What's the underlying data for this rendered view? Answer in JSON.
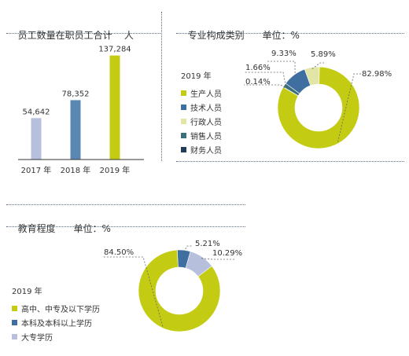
{
  "colors": {
    "lime": "#c3cc12",
    "blue": "#3e6fa0",
    "pale_lime": "#e3e5a6",
    "lavender": "#b6bfdc",
    "teal": "#3b6f7a",
    "navy": "#213d5b",
    "bar2017": "#b6bfdc",
    "bar2018": "#5b88b3",
    "bar2019": "#c3cc12"
  },
  "panels": {
    "employees": {
      "title": "员工数量在职员工合计",
      "unit": "人"
    },
    "specialty": {
      "title": "专业构成类别",
      "unit": "单位：%"
    },
    "education": {
      "title": "教育程度",
      "unit": "单位：%"
    }
  },
  "chart_data": [
    {
      "type": "bar",
      "title": "员工数量在职员工合计",
      "unit": "人",
      "categories": [
        "2017 年",
        "2018 年",
        "2019 年"
      ],
      "values": [
        54642,
        78352,
        137284
      ],
      "value_labels": [
        "54,642",
        "78,352",
        "137,284"
      ],
      "ylim": [
        0,
        140000
      ],
      "colors": [
        "#b6bfdc",
        "#5b88b3",
        "#c3cc12"
      ],
      "grid": false
    },
    {
      "type": "pie",
      "style": "donut",
      "title": "专业构成类别",
      "unit": "单位：%",
      "legend_title": "2019 年",
      "legend_position": "left",
      "slices": [
        {
          "name": "生产人员",
          "value": 82.98,
          "label": "82.98%",
          "color": "#c3cc12"
        },
        {
          "name": "技术人员",
          "value": 9.33,
          "label": "9.33%",
          "color": "#3e6fa0"
        },
        {
          "name": "行政人员",
          "value": 5.89,
          "label": "5.89%",
          "color": "#e3e5a6"
        },
        {
          "name": "销售人员",
          "value": 1.66,
          "label": "1.66%",
          "color": "#3b6f7a"
        },
        {
          "name": "财务人员",
          "value": 0.14,
          "label": "0.14%",
          "color": "#213d5b"
        }
      ]
    },
    {
      "type": "pie",
      "style": "donut",
      "title": "教育程度",
      "unit": "单位：%",
      "legend_title": "2019 年",
      "legend_position": "left",
      "slices": [
        {
          "name": "高中、中专及以下学历",
          "value": 84.5,
          "label": "84.50%",
          "color": "#c3cc12"
        },
        {
          "name": "本科及本科以上学历",
          "value": 5.21,
          "label": "5.21%",
          "color": "#3e6fa0"
        },
        {
          "name": "大专学历",
          "value": 10.29,
          "label": "10.29%",
          "color": "#b6bfdc"
        }
      ]
    }
  ]
}
